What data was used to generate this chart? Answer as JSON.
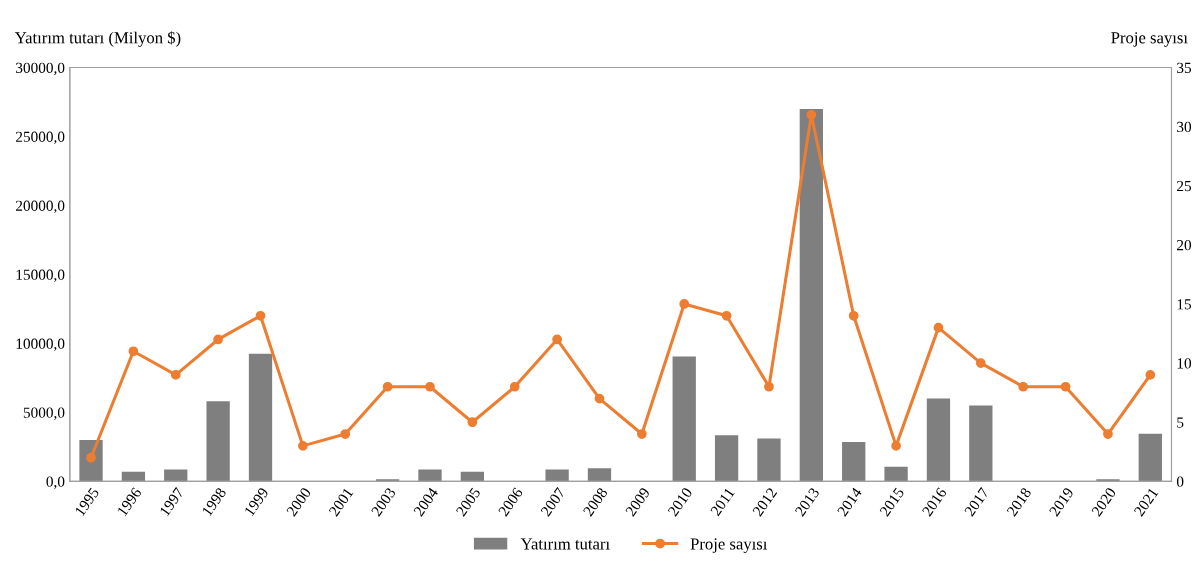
{
  "chart_data": {
    "type": "bar",
    "ylabel": "Yatırım tutarı (Milyon $)",
    "y2label": "Proje sayısı",
    "categories": [
      "1995",
      "1996",
      "1997",
      "1998",
      "1999",
      "2000",
      "2001",
      "2003",
      "2004",
      "2005",
      "2006",
      "2007",
      "2008",
      "2009",
      "2010",
      "2011",
      "2012",
      "2013",
      "2014",
      "2015",
      "2016",
      "2017",
      "2018",
      "2019",
      "2020",
      "2021"
    ],
    "series": [
      {
        "name": "Yatırım tutarı",
        "color": "#7f7f7f",
        "values": [
          3000,
          700,
          850,
          5800,
          9250,
          0,
          0,
          150,
          850,
          700,
          0,
          850,
          950,
          0,
          9050,
          3350,
          3100,
          27000,
          2850,
          1050,
          6000,
          5500,
          0,
          0,
          150,
          3450
        ]
      },
      {
        "name": "Proje sayısı",
        "type": "line",
        "axis": "y2",
        "color": "#ed7d31",
        "values": [
          2,
          11,
          9,
          12,
          14,
          3,
          4,
          8,
          8,
          5,
          8,
          12,
          7,
          4,
          15,
          14,
          8,
          31,
          14,
          3,
          13,
          10,
          8,
          8,
          4,
          9
        ]
      }
    ],
    "ylim": [
      0,
      30000
    ],
    "yticks": [
      {
        "value": 0,
        "label": "0,0"
      },
      {
        "value": 5000,
        "label": "5000,0"
      },
      {
        "value": 10000,
        "label": "10000,0"
      },
      {
        "value": 15000,
        "label": "15000,0"
      },
      {
        "value": 20000,
        "label": "20000,0"
      },
      {
        "value": 25000,
        "label": "25000,0"
      },
      {
        "value": 30000,
        "label": "30000,0"
      }
    ],
    "y2lim": [
      0,
      35
    ],
    "y2ticks": [
      0,
      5,
      10,
      15,
      20,
      25,
      30,
      35
    ],
    "marker": "circle",
    "legend": "bottom",
    "grid": false
  }
}
